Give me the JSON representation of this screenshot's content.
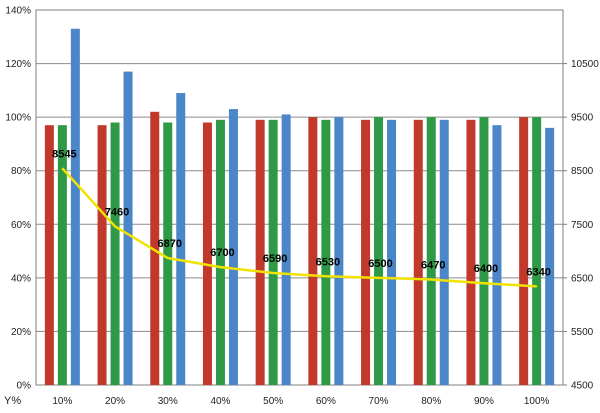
{
  "chart_data": {
    "type": "bar",
    "xlabel": "Y%",
    "categories": [
      "10%",
      "20%",
      "30%",
      "40%",
      "50%",
      "60%",
      "70%",
      "80%",
      "90%",
      "100%"
    ],
    "y_left": {
      "min": 0,
      "max": 140,
      "ticks": [
        0,
        20,
        40,
        60,
        80,
        100,
        120,
        140
      ],
      "tick_labels": [
        "0%",
        "20%",
        "40%",
        "60%",
        "80%",
        "100%",
        "120%",
        "140%"
      ]
    },
    "y_right": {
      "min": 4500,
      "max": 11500,
      "ticks": [
        4500,
        5500,
        6500,
        7500,
        8500,
        9500,
        10500
      ],
      "tick_labels": [
        "4500",
        "5500",
        "6500",
        "7500",
        "8500",
        "9500",
        "10500"
      ]
    },
    "grid": true,
    "series": [
      {
        "type": "bar",
        "axis": "left",
        "color": "#c0392b",
        "values": [
          97,
          97,
          102,
          98,
          99,
          100,
          99,
          99,
          99,
          100
        ]
      },
      {
        "type": "bar",
        "axis": "left",
        "color": "#2e9a47",
        "values": [
          97,
          98,
          98,
          99,
          99,
          99,
          100,
          100,
          100,
          100
        ]
      },
      {
        "type": "bar",
        "axis": "left",
        "color": "#4a86c8",
        "values": [
          133,
          117,
          109,
          103,
          101,
          100,
          99,
          99,
          97,
          96
        ]
      },
      {
        "type": "line",
        "axis": "right",
        "color": "#f2e200",
        "values": [
          8545,
          7460,
          6870,
          6700,
          6590,
          6530,
          6500,
          6470,
          6400,
          6340
        ],
        "data_labels": [
          "8545",
          "7460",
          "6870",
          "6700",
          "6590",
          "6530",
          "6500",
          "6470",
          "6400",
          "6340"
        ]
      }
    ]
  }
}
